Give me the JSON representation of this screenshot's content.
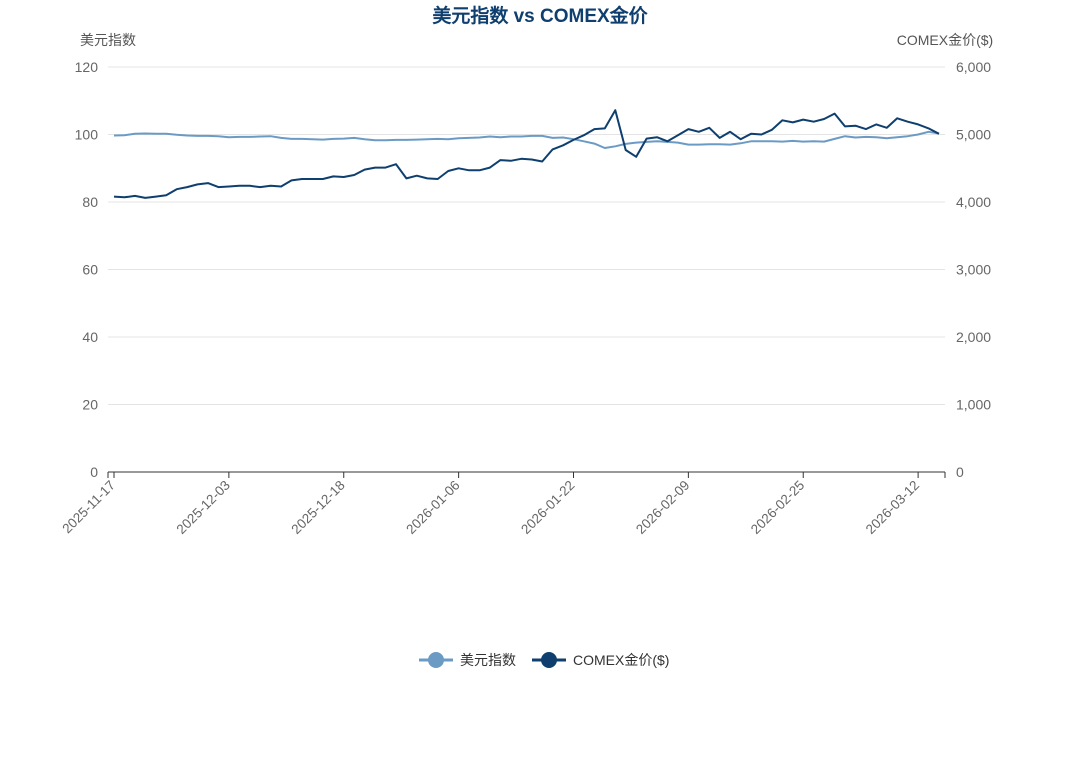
{
  "chart_data": {
    "type": "line",
    "title": "美元指数 vs COMEX金价",
    "y_left_label": "美元指数",
    "y_right_label": "COMEX金价($)",
    "y_left_lim": [
      0,
      120
    ],
    "y_left_ticks": [
      "0",
      "20",
      "40",
      "60",
      "80",
      "100",
      "120"
    ],
    "y_right_lim": [
      0,
      6000
    ],
    "y_right_ticks": [
      "0",
      "1,000",
      "2,000",
      "3,000",
      "4,000",
      "5,000",
      "6,000"
    ],
    "x_tick_labels": [
      "2025-11-17",
      "2025-12-03",
      "2025-12-18",
      "2026-01-06",
      "2026-01-22",
      "2026-02-09",
      "2026-02-25",
      "2026-03-12"
    ],
    "x_tick_index": [
      0,
      11,
      22,
      33,
      44,
      55,
      66,
      77
    ],
    "grid": true,
    "legend_position": "bottom-center",
    "series": [
      {
        "name": "美元指数",
        "axis": "left",
        "color": "#6b9bc4",
        "values": [
          99.7,
          99.8,
          100.2,
          100.3,
          100.2,
          100.2,
          99.9,
          99.7,
          99.6,
          99.6,
          99.5,
          99.2,
          99.3,
          99.3,
          99.4,
          99.5,
          99.0,
          98.7,
          98.7,
          98.6,
          98.5,
          98.7,
          98.8,
          99.0,
          98.6,
          98.3,
          98.3,
          98.4,
          98.4,
          98.5,
          98.6,
          98.7,
          98.6,
          98.9,
          99.0,
          99.1,
          99.4,
          99.2,
          99.4,
          99.4,
          99.6,
          99.6,
          99.0,
          99.1,
          98.6,
          98.0,
          97.3,
          96.0,
          96.5,
          97.2,
          97.6,
          97.8,
          98.0,
          97.8,
          97.6,
          97.0,
          97.0,
          97.1,
          97.1,
          97.0,
          97.4,
          98.0,
          98.0,
          98.0,
          97.9,
          98.1,
          97.9,
          98.0,
          97.9,
          98.7,
          99.5,
          99.1,
          99.3,
          99.2,
          98.9,
          99.2,
          99.5,
          100.0,
          100.8,
          100.3
        ]
      },
      {
        "name": "COMEX金价($)",
        "axis": "right",
        "color": "#0e3f6e",
        "values": [
          4080,
          4070,
          4090,
          4060,
          4080,
          4100,
          4190,
          4220,
          4260,
          4280,
          4220,
          4230,
          4240,
          4240,
          4220,
          4240,
          4230,
          4320,
          4340,
          4340,
          4340,
          4380,
          4370,
          4400,
          4480,
          4510,
          4510,
          4560,
          4350,
          4390,
          4350,
          4340,
          4460,
          4500,
          4470,
          4470,
          4510,
          4620,
          4610,
          4640,
          4630,
          4600,
          4780,
          4840,
          4920,
          4990,
          5080,
          5090,
          5360,
          4770,
          4670,
          4940,
          4960,
          4900,
          4990,
          5080,
          5040,
          5100,
          4950,
          5040,
          4930,
          5010,
          5000,
          5070,
          5210,
          5180,
          5220,
          5190,
          5230,
          5310,
          5120,
          5130,
          5080,
          5150,
          5100,
          5240,
          5190,
          5150,
          5090,
          5010
        ]
      }
    ]
  }
}
